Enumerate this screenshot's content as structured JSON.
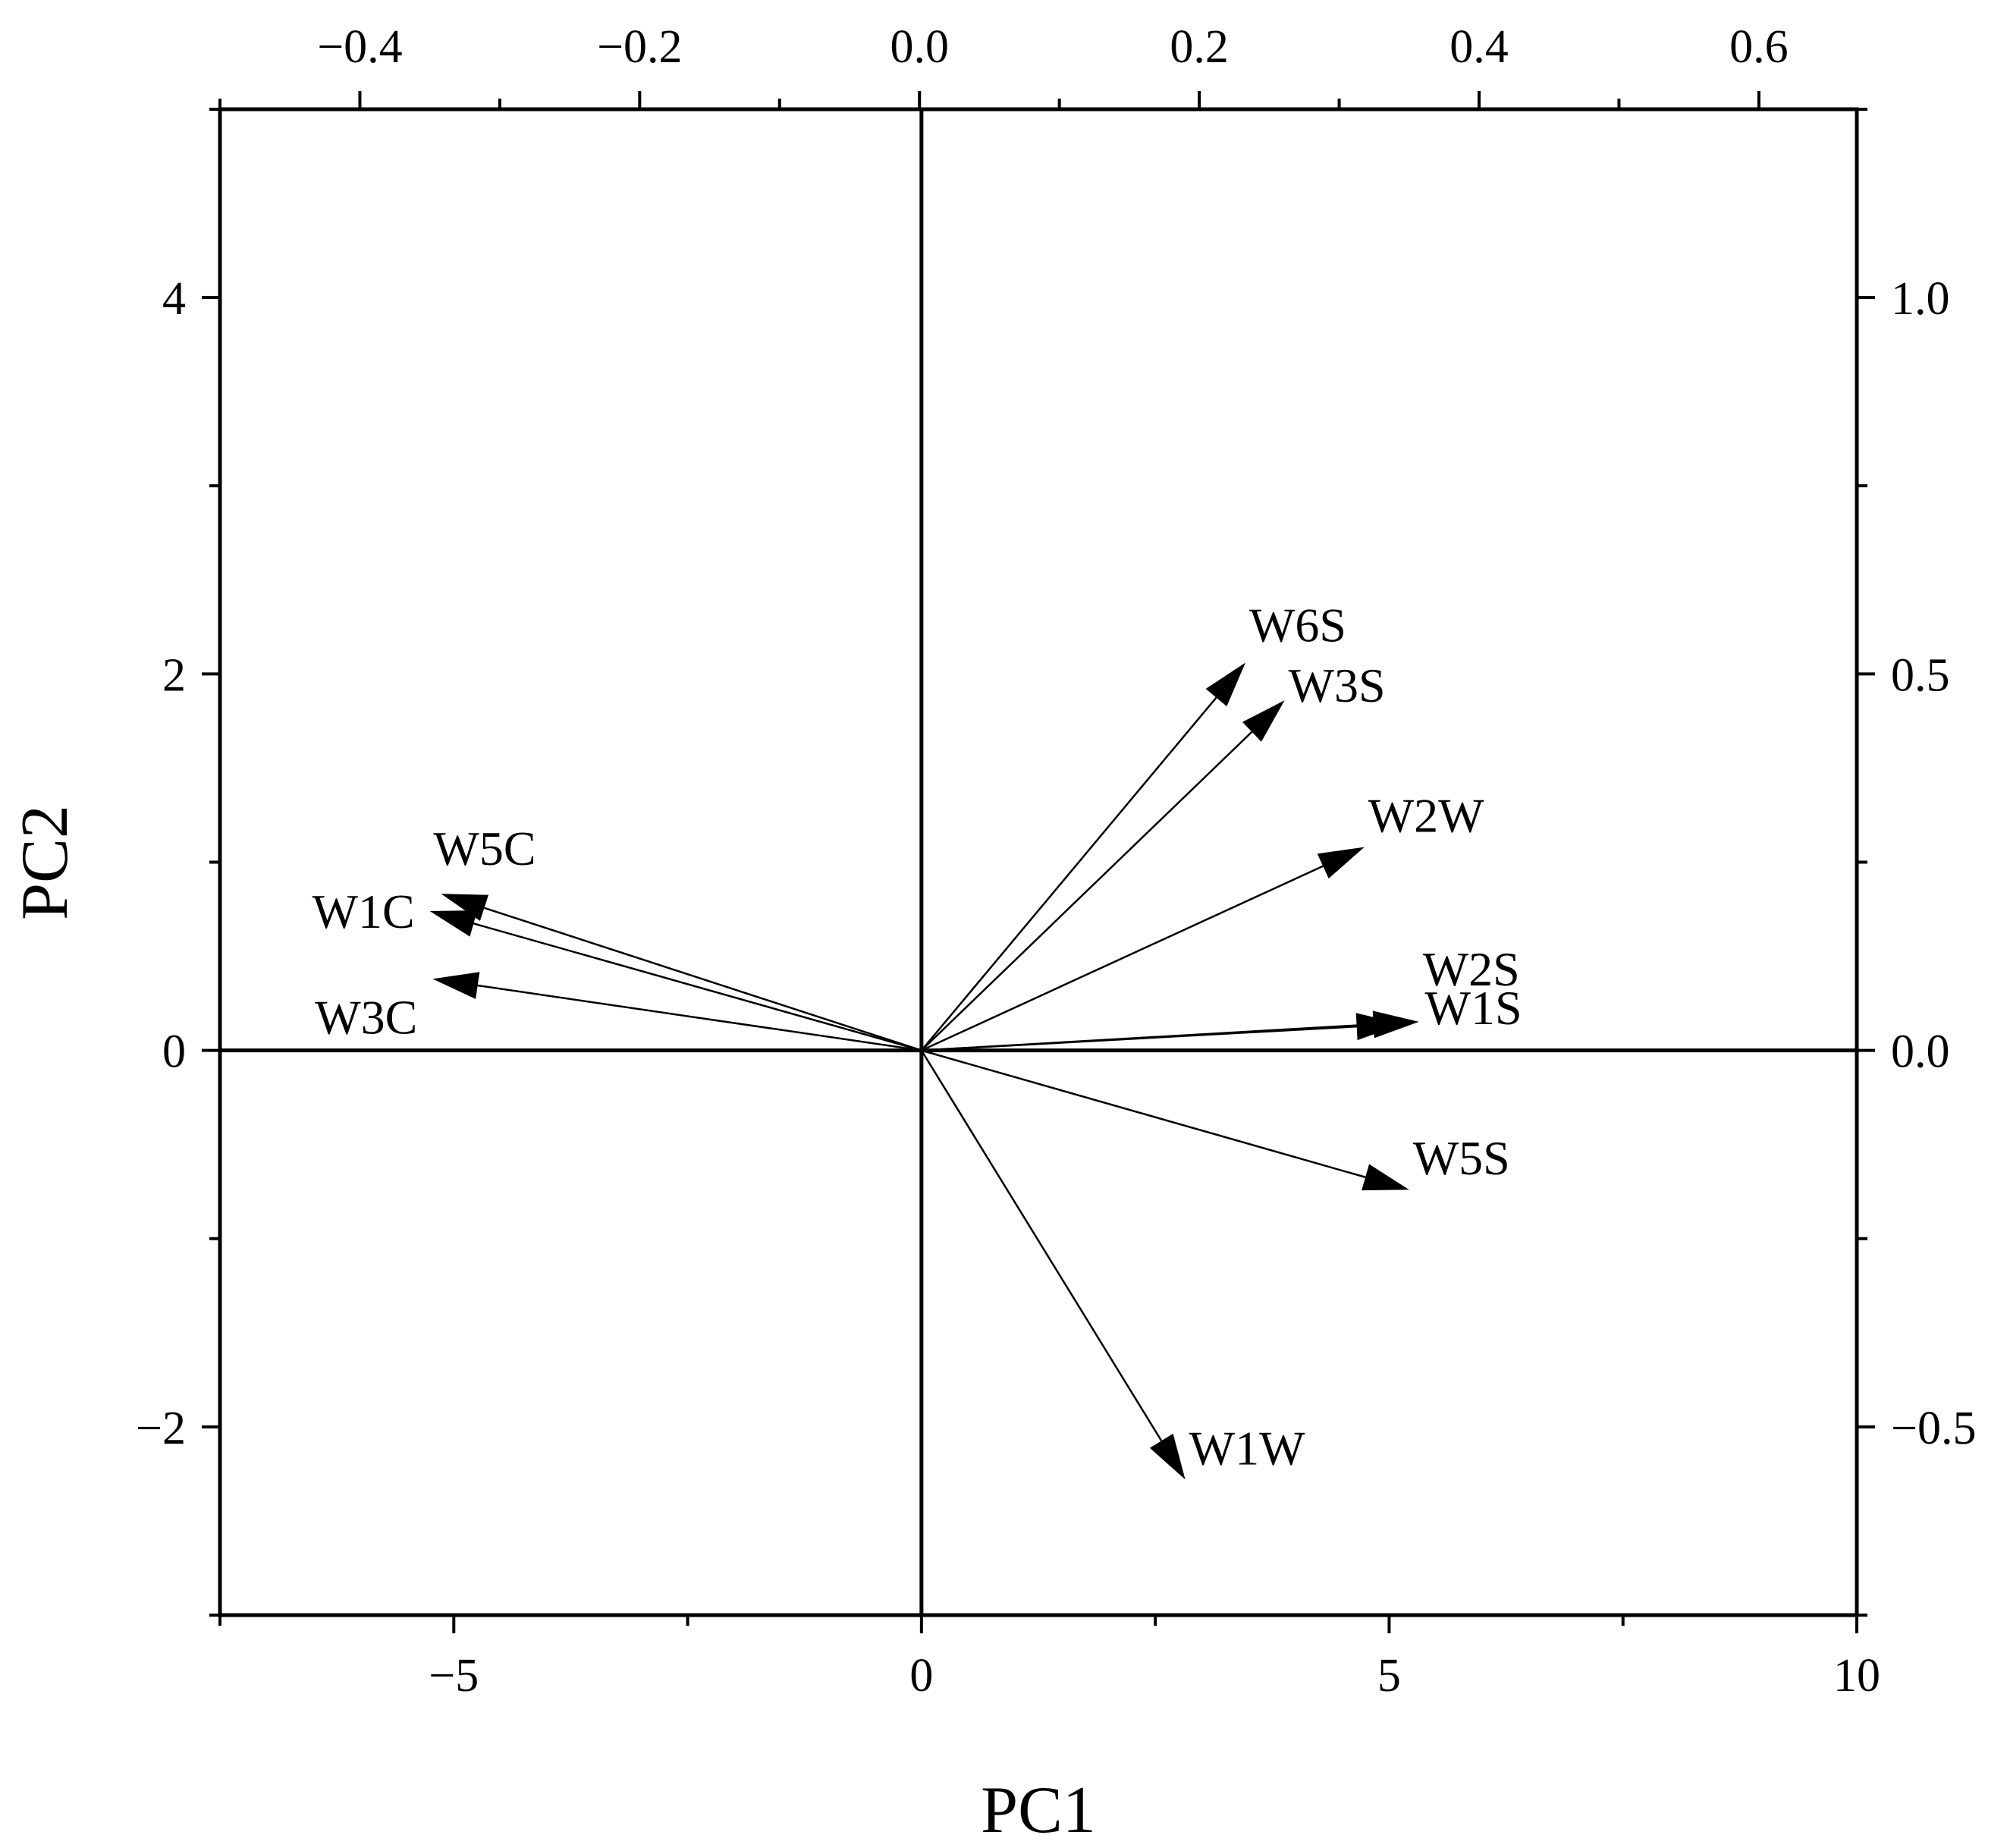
{
  "chart_data": {
    "type": "biplot",
    "xlabel": "PC1",
    "ylabel": "PC2",
    "grid": false,
    "xlim": [
      -7.5,
      10
    ],
    "ylim": [
      -3,
      5
    ],
    "x_ticks": [
      -5,
      0,
      5,
      10
    ],
    "x_tick_labels": [
      "−5",
      "0",
      "5",
      "10"
    ],
    "y_ticks": [
      -2,
      0,
      2,
      4
    ],
    "y_tick_labels": [
      "−2",
      "0",
      "2",
      "4"
    ],
    "top_axis": {
      "lim": [
        -0.5,
        0.67
      ],
      "ticks": [
        -0.4,
        -0.2,
        0.0,
        0.2,
        0.4,
        0.6
      ],
      "tick_labels": [
        "−0.4",
        "−0.2",
        "0.0",
        "0.2",
        "0.4",
        "0.6"
      ]
    },
    "right_axis": {
      "lim": [
        -0.75,
        1.25
      ],
      "ticks": [
        -0.5,
        0.0,
        0.5,
        1.0
      ],
      "tick_labels": [
        "−0.5",
        "0.0",
        "0.5",
        "1.0"
      ]
    },
    "vectors": [
      {
        "label": "W6S",
        "x": 0.233,
        "y": 0.515
      },
      {
        "label": "W3S",
        "x": 0.261,
        "y": 0.465
      },
      {
        "label": "W2W",
        "x": 0.318,
        "y": 0.27
      },
      {
        "label": "W2S",
        "x": 0.357,
        "y": 0.038
      },
      {
        "label": "W1S",
        "x": 0.345,
        "y": 0.035
      },
      {
        "label": "W5S",
        "x": 0.35,
        "y": -0.185
      },
      {
        "label": "W1W",
        "x": 0.19,
        "y": -0.57
      },
      {
        "label": "W5C",
        "x": -0.342,
        "y": 0.208
      },
      {
        "label": "W1C",
        "x": -0.35,
        "y": 0.185
      },
      {
        "label": "W3C",
        "x": -0.348,
        "y": 0.095
      }
    ]
  }
}
